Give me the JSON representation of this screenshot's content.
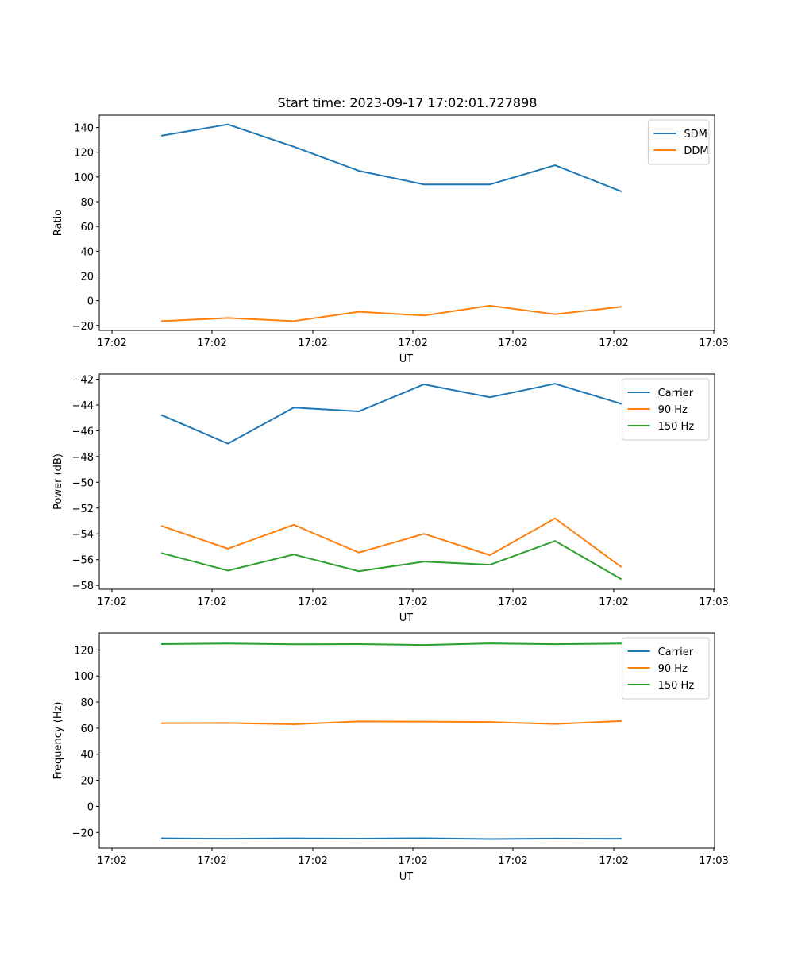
{
  "figure_title": "Start time: 2023-09-17 17:02:01.727898",
  "chart_data": [
    {
      "type": "line",
      "title": "Start time: 2023-09-17 17:02:01.727898",
      "xlabel": "UT",
      "ylabel": "Ratio",
      "x_tick_labels": [
        "17:02",
        "17:02",
        "17:02",
        "17:02",
        "17:02",
        "17:02",
        "17:03"
      ],
      "y_ticks": [
        -20,
        0,
        20,
        40,
        60,
        80,
        100,
        120,
        140
      ],
      "ylim": [
        -24,
        150
      ],
      "legend_position": "upper-right",
      "series": [
        {
          "name": "SDM",
          "color": "#1f77b4",
          "values": [
            133.5,
            142.5,
            124.5,
            105,
            94,
            94,
            109.5,
            88.5
          ]
        },
        {
          "name": "DDM",
          "color": "#ff7f0e",
          "values": [
            -16.5,
            -14,
            -16.5,
            -9,
            -12,
            -4,
            -11,
            -5
          ]
        }
      ]
    },
    {
      "type": "line",
      "title": "",
      "xlabel": "UT",
      "ylabel": "Power (dB)",
      "x_tick_labels": [
        "17:02",
        "17:02",
        "17:02",
        "17:02",
        "17:02",
        "17:02",
        "17:03"
      ],
      "y_ticks": [
        -58,
        -56,
        -54,
        -52,
        -50,
        -48,
        -46,
        -44,
        -42
      ],
      "ylim": [
        -58.3,
        -41.6
      ],
      "legend_position": "upper-right",
      "series": [
        {
          "name": "Carrier",
          "color": "#1f77b4",
          "values": [
            -44.8,
            -47,
            -44.2,
            -44.5,
            -42.4,
            -43.4,
            -42.35,
            -43.9
          ]
        },
        {
          "name": "90 Hz",
          "color": "#ff7f0e",
          "values": [
            -53.4,
            -55.15,
            -53.3,
            -55.45,
            -54,
            -55.65,
            -52.8,
            -56.55
          ]
        },
        {
          "name": "150 Hz",
          "color": "#2ca02c",
          "values": [
            -55.5,
            -56.85,
            -55.6,
            -56.9,
            -56.15,
            -56.4,
            -54.55,
            -57.5
          ]
        }
      ]
    },
    {
      "type": "line",
      "title": "",
      "xlabel": "UT",
      "ylabel": "Frequency (Hz)",
      "x_tick_labels": [
        "17:02",
        "17:02",
        "17:02",
        "17:02",
        "17:02",
        "17:02",
        "17:03"
      ],
      "y_ticks": [
        -20,
        0,
        20,
        40,
        60,
        80,
        100,
        120
      ],
      "ylim": [
        -32,
        133
      ],
      "legend_position": "upper-right",
      "series": [
        {
          "name": "Carrier",
          "color": "#1f77b4",
          "values": [
            -24.5,
            -24.8,
            -24.5,
            -24.7,
            -24.4,
            -25,
            -24.6,
            -24.8
          ]
        },
        {
          "name": "90 Hz",
          "color": "#ff7f0e",
          "values": [
            63.8,
            64,
            63,
            65.2,
            65,
            64.7,
            63.2,
            65.5
          ]
        },
        {
          "name": "150 Hz",
          "color": "#2ca02c",
          "values": [
            124.5,
            124.9,
            124.3,
            124.5,
            123.8,
            125,
            124.4,
            124.9
          ]
        }
      ]
    }
  ]
}
